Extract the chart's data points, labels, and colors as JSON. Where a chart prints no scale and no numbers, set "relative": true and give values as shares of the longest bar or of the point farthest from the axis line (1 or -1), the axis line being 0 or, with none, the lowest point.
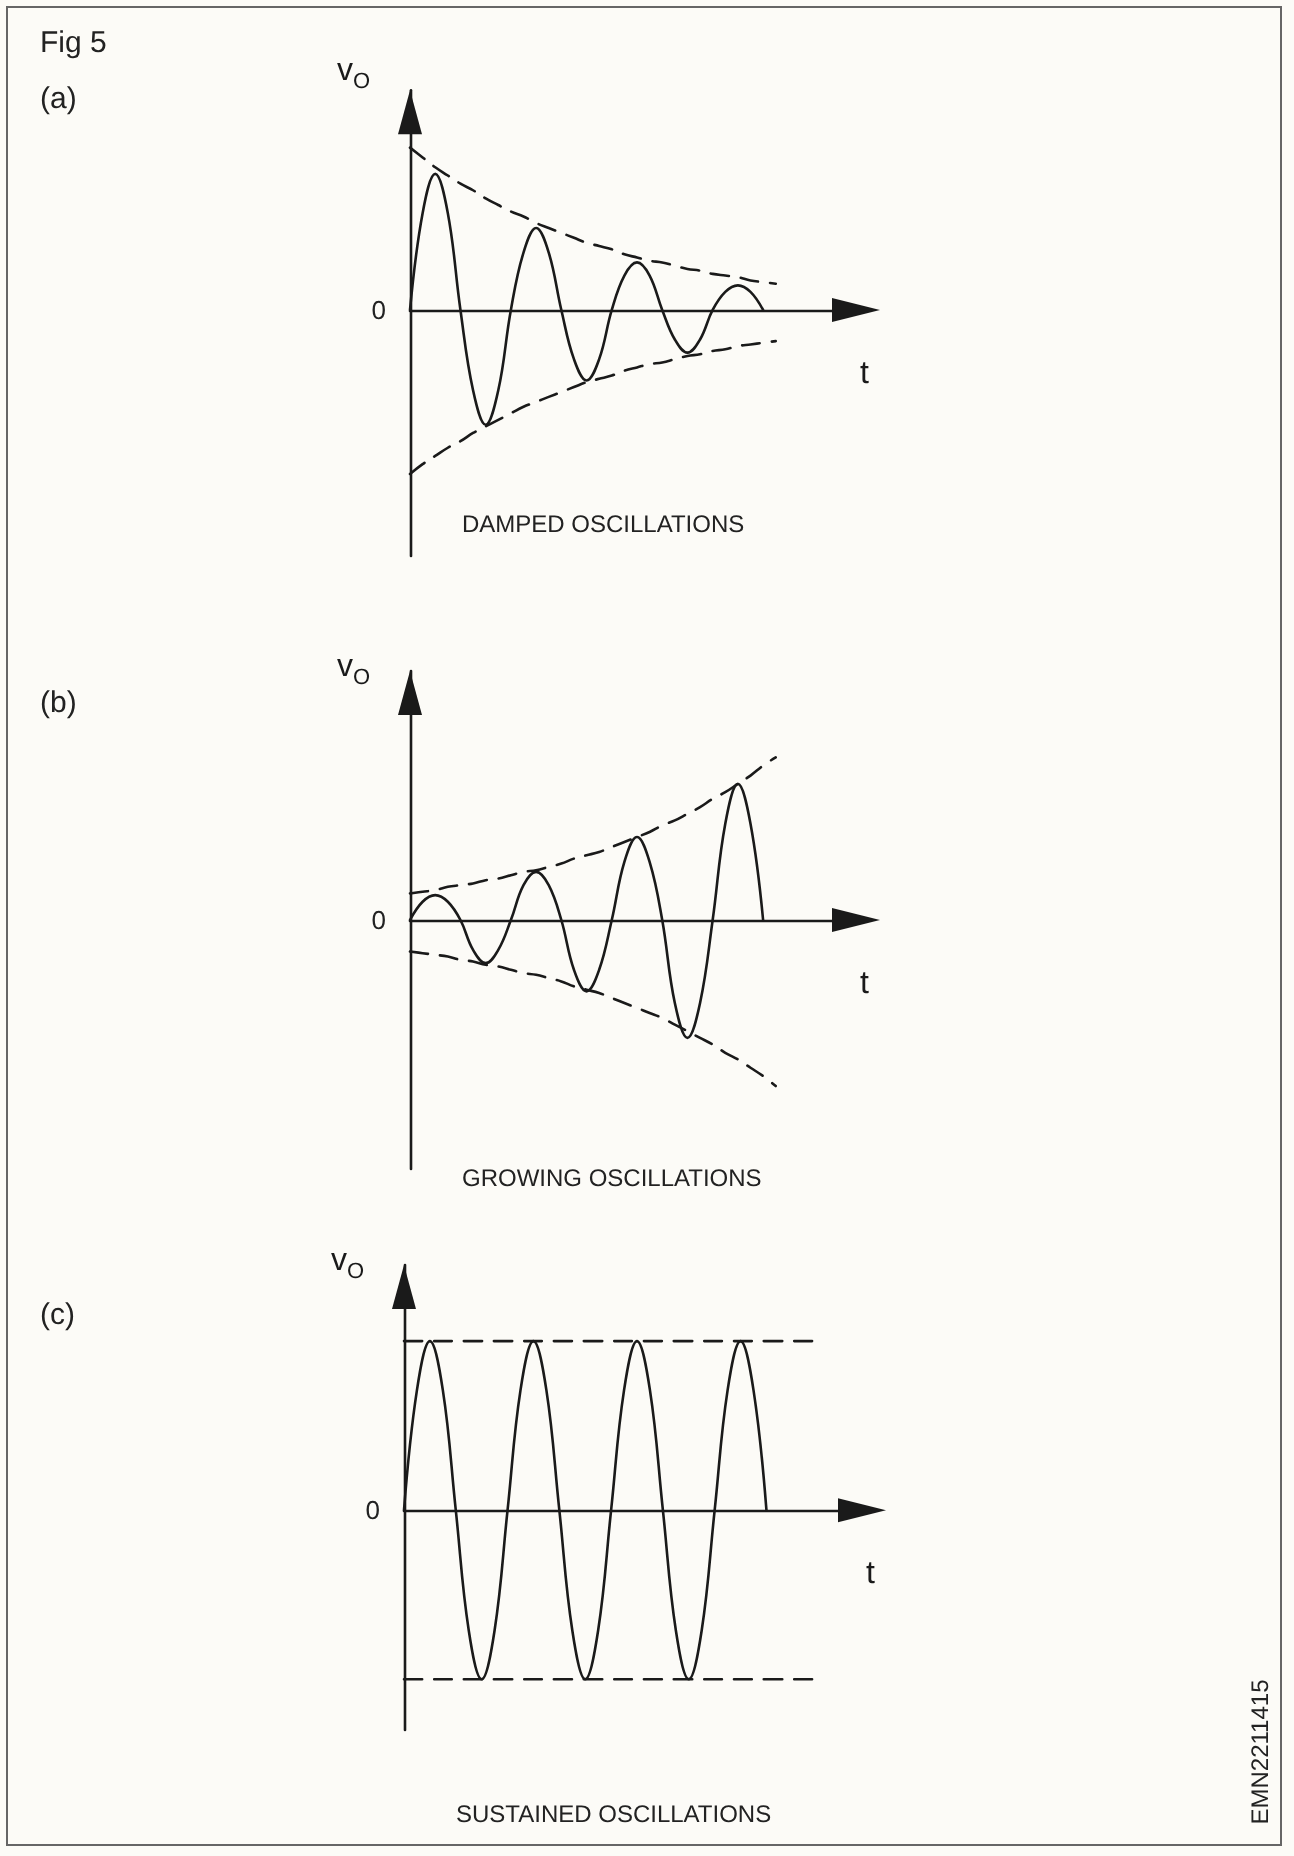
{
  "chart_data": [
    {
      "type": "line",
      "relative": true,
      "xlabel": "t",
      "ylabel": "v$_{O}$",
      "categories": [
        null,
        null,
        null,
        null,
        null,
        null,
        null,
        null,
        null,
        null,
        null,
        null,
        null,
        null,
        null,
        null,
        null,
        null,
        null,
        null,
        null,
        null,
        null,
        null,
        null,
        null,
        null,
        null,
        null,
        null,
        null,
        null,
        null,
        null,
        null,
        null,
        null
      ],
      "series": [
        {
          "color": "#1a1a1a",
          "values": [
            0,
            0.59,
            0.83,
            0.59,
            0,
            -0.49,
            -0.7,
            -0.49,
            0,
            0.35,
            0.5,
            0.35,
            0,
            -0.3,
            -0.43,
            -0.3,
            0,
            0.21,
            0.29,
            0.21,
            0,
            -0.18,
            -0.26,
            -0.18,
            0,
            0.11,
            0.15,
            0.11,
            0,
            null,
            null,
            null,
            null,
            null,
            null,
            null,
            null
          ]
        },
        {
          "color": "#1a1a1a",
          "line_style": "dashed",
          "values": [
            0.99,
            0.93,
            0.87,
            0.82,
            0.77,
            0.73,
            0.68,
            0.64,
            0.6,
            0.57,
            0.53,
            0.5,
            0.47,
            0.44,
            0.41,
            0.39,
            0.37,
            0.34,
            0.32,
            0.3,
            0.29,
            0.27,
            0.25,
            0.24,
            0.22,
            0.21,
            0.2,
            0.18,
            0.17,
            0.16,
            null,
            null,
            null,
            null,
            null,
            null,
            null
          ]
        },
        {
          "color": "#1a1a1a",
          "line_style": "dashed",
          "values": [
            -1,
            -0.94,
            -0.89,
            -0.84,
            -0.8,
            -0.75,
            -0.71,
            -0.67,
            -0.63,
            -0.59,
            -0.56,
            -0.53,
            -0.5,
            -0.47,
            -0.44,
            -0.42,
            -0.4,
            -0.37,
            -0.35,
            -0.33,
            -0.32,
            -0.3,
            -0.28,
            -0.27,
            -0.25,
            -0.24,
            -0.22,
            -0.21,
            -0.2,
            -0.19,
            null,
            null,
            null,
            null,
            null,
            null,
            null
          ]
        }
      ],
      "annotations": [
        "Fig 5",
        "(a)",
        "DAMPED OSCILLATIONS",
        "0"
      ]
    },
    {
      "type": "line",
      "relative": true,
      "xlabel": "t",
      "ylabel": "v$_{O}$",
      "categories": [
        null,
        null,
        null,
        null,
        null,
        null,
        null,
        null,
        null,
        null,
        null,
        null,
        null,
        null,
        null,
        null,
        null,
        null,
        null,
        null,
        null,
        null,
        null,
        null,
        null,
        null,
        null,
        null,
        null,
        null,
        null,
        null,
        null,
        null,
        null,
        null,
        null
      ],
      "series": [
        {
          "color": "#1a1a1a",
          "values": [
            0,
            0.11,
            0.15,
            0.11,
            0,
            -0.18,
            -0.26,
            -0.18,
            0,
            0.21,
            0.29,
            0.21,
            0,
            -0.3,
            -0.43,
            -0.3,
            0,
            0.35,
            0.5,
            0.35,
            0,
            -0.5,
            -0.71,
            -0.5,
            0,
            0.58,
            0.82,
            0.58,
            0,
            null,
            null,
            null,
            null,
            null,
            null,
            null,
            null
          ]
        },
        {
          "color": "#1a1a1a",
          "line_style": "dashed",
          "values": [
            0.16,
            0.17,
            0.18,
            0.2,
            0.21,
            0.22,
            0.24,
            0.25,
            0.27,
            0.29,
            0.3,
            0.32,
            0.34,
            0.37,
            0.39,
            0.41,
            0.44,
            0.47,
            0.5,
            0.53,
            0.57,
            0.6,
            0.64,
            0.68,
            0.73,
            0.77,
            0.82,
            0.87,
            0.93,
            0.98,
            null,
            null,
            null,
            null,
            null,
            null,
            null
          ]
        },
        {
          "color": "#1a1a1a",
          "line_style": "dashed",
          "values": [
            -0.19,
            -0.2,
            -0.21,
            -0.22,
            -0.24,
            -0.25,
            -0.27,
            -0.28,
            -0.3,
            -0.32,
            -0.33,
            -0.35,
            -0.37,
            -0.4,
            -0.42,
            -0.44,
            -0.47,
            -0.5,
            -0.53,
            -0.56,
            -0.59,
            -0.63,
            -0.67,
            -0.71,
            -0.75,
            -0.8,
            -0.84,
            -0.89,
            -0.94,
            -1,
            null,
            null,
            null,
            null,
            null,
            null,
            null
          ]
        }
      ],
      "annotations": [
        "(b)",
        "GROWING OSCILLATIONS",
        "0"
      ]
    },
    {
      "type": "line",
      "relative": true,
      "xlabel": "t",
      "ylabel": "v$_{O}$",
      "categories": [
        null,
        null,
        null,
        null,
        null,
        null,
        null,
        null,
        null,
        null,
        null,
        null,
        null,
        null,
        null,
        null,
        null,
        null,
        null,
        null,
        null,
        null,
        null,
        null,
        null,
        null,
        null,
        null,
        null,
        null,
        null,
        null,
        null,
        null,
        null,
        null,
        null
      ],
      "series": [
        {
          "color": "#1a1a1a",
          "values": [
            0,
            0.71,
            1,
            0.71,
            0,
            -0.71,
            -1,
            -0.71,
            0,
            0.71,
            1,
            0.71,
            0,
            -0.71,
            -1,
            -0.71,
            0,
            0.71,
            1,
            0.71,
            0,
            -0.71,
            -1,
            -0.71,
            0,
            0.71,
            1,
            0.71,
            0,
            null,
            null,
            null,
            null,
            null,
            null,
            null,
            null
          ]
        },
        {
          "color": "#1a1a1a",
          "line_style": "dashed",
          "values": [
            1,
            1,
            1,
            1,
            1,
            1,
            1,
            1,
            1,
            1,
            1,
            1,
            1,
            1,
            1,
            1,
            1,
            1,
            1,
            1,
            1,
            1,
            1,
            1,
            1,
            1,
            1,
            1,
            1,
            1,
            1,
            1,
            1,
            null,
            null,
            null,
            null
          ]
        },
        {
          "color": "#1a1a1a",
          "line_style": "dashed",
          "values": [
            -1,
            -1,
            -1,
            -1,
            -1,
            -1,
            -1,
            -1,
            -1,
            -1,
            -1,
            -1,
            -1,
            -1,
            -1,
            -1,
            -1,
            -1,
            -1,
            -1,
            -1,
            -1,
            -1,
            -1,
            -1,
            -1,
            -1,
            -1,
            -1,
            -1,
            -1,
            -1,
            -1,
            null,
            null,
            null,
            null
          ]
        }
      ],
      "annotations": [
        "(c)",
        "SUSTAINED OSCILLATIONS",
        "EMN2211415",
        "0"
      ]
    }
  ]
}
